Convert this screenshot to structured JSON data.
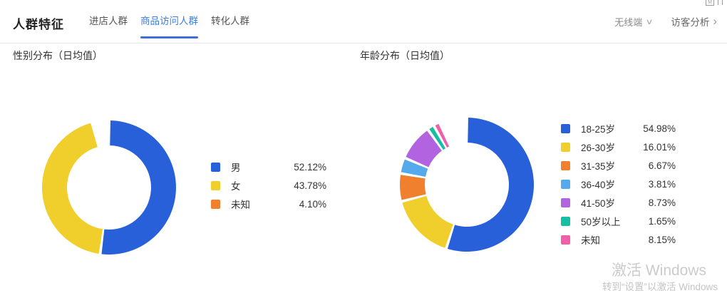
{
  "header": {
    "title": "人群特征",
    "tabs": [
      {
        "label": "进店人群",
        "active": false
      },
      {
        "label": "商品访问人群",
        "active": true
      },
      {
        "label": "转化人群",
        "active": false
      }
    ],
    "device_filter": {
      "label": "无线端"
    },
    "visitor_link": {
      "label": "访客分析"
    }
  },
  "icons": {
    "chevron_down": "∨",
    "chevron_right": "›",
    "artifact_box": "M"
  },
  "sections": {
    "gender": {
      "title": "性别分布（日均值）",
      "legend": [
        {
          "label": "男",
          "percent": "52.12%"
        },
        {
          "label": "女",
          "percent": "43.78%"
        },
        {
          "label": "未知",
          "percent": "4.10%"
        }
      ]
    },
    "age": {
      "title": "年龄分布（日均值）",
      "legend": [
        {
          "label": "18-25岁",
          "percent": "54.98%"
        },
        {
          "label": "26-30岁",
          "percent": "16.01%"
        },
        {
          "label": "31-35岁",
          "percent": "6.67%"
        },
        {
          "label": "36-40岁",
          "percent": "3.81%"
        },
        {
          "label": "41-50岁",
          "percent": "8.73%"
        },
        {
          "label": "50岁以上",
          "percent": "1.65%"
        },
        {
          "label": "未知",
          "percent": "8.15%"
        }
      ]
    }
  },
  "chart_data": [
    {
      "type": "pie",
      "variant": "donut",
      "title": "性别分布（日均值）",
      "start_angle_deg": 0,
      "direction": "clockwise",
      "pad_deg": 1.2,
      "legend_position": "right",
      "segments": [
        {
          "label": "男",
          "value": 52.12,
          "color": "#2760d9",
          "visible": true
        },
        {
          "label": "女",
          "value": 43.78,
          "color": "#f0ce2b",
          "visible": true
        },
        {
          "label": "未知",
          "value": 4.1,
          "color": "#f0802e",
          "visible": false
        }
      ]
    },
    {
      "type": "pie",
      "variant": "donut",
      "title": "年龄分布（日均值）",
      "start_angle_deg": 0,
      "direction": "clockwise",
      "pad_deg": 1.2,
      "legend_position": "right",
      "segments": [
        {
          "label": "18-25岁",
          "value": 54.98,
          "color": "#2760d9",
          "visible": true
        },
        {
          "label": "26-30岁",
          "value": 16.01,
          "color": "#f0ce2b",
          "visible": true
        },
        {
          "label": "31-35岁",
          "value": 6.67,
          "color": "#f0802e",
          "visible": true
        },
        {
          "label": "36-40岁",
          "value": 3.81,
          "color": "#55aaec",
          "visible": true
        },
        {
          "label": "41-50岁",
          "value": 8.73,
          "color": "#b163e0",
          "visible": true
        },
        {
          "label": "50岁以上",
          "value": 1.65,
          "color": "#16bfa3",
          "visible": true
        },
        {
          "label": "未知",
          "value": 8.15,
          "color": "#f05fa8",
          "visible": true,
          "visible_deg": 3.2
        }
      ]
    }
  ],
  "watermark": {
    "line1": "激活 Windows",
    "line2": "转到“设置”以激活 Windows"
  }
}
